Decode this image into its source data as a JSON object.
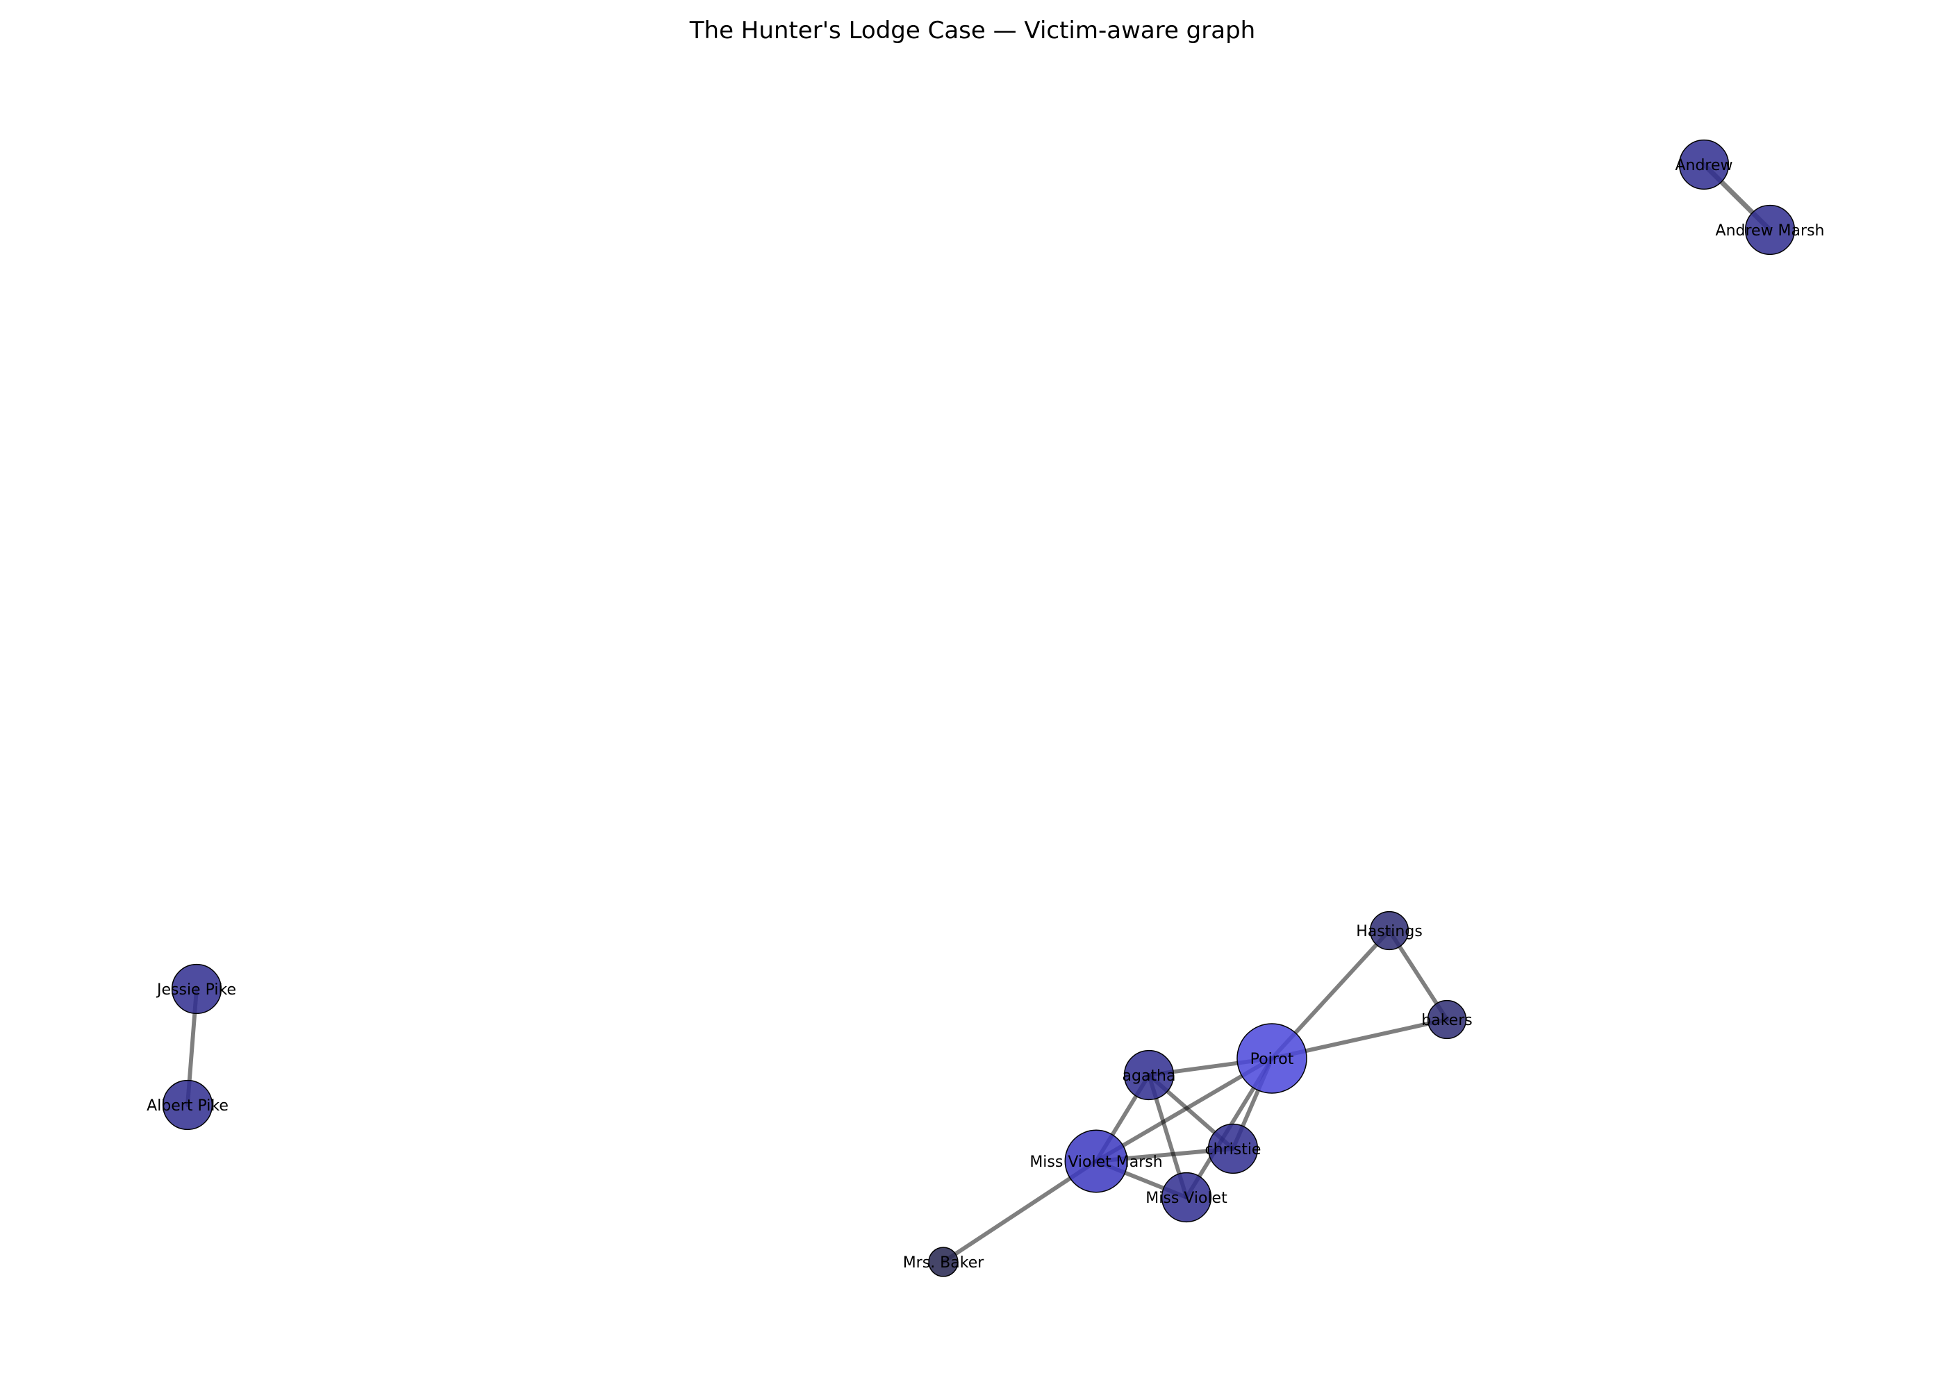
{
  "title": "The Hunter's Lodge Case — Victim-aware graph",
  "colors": {
    "edge": "#000000",
    "node_high": "#4a46da",
    "node_default": "#2f2d8f",
    "node_dark": "#25244f"
  },
  "nodes": [
    {
      "id": "Andrew",
      "label": "Andrew",
      "weight": 2,
      "color": "#2f2d8f"
    },
    {
      "id": "Andrew Marsh",
      "label": "Andrew Marsh",
      "weight": 2,
      "color": "#2f2d8f"
    },
    {
      "id": "Jessie Pike",
      "label": "Jessie Pike",
      "weight": 2,
      "color": "#2f2d8f"
    },
    {
      "id": "Albert Pike",
      "label": "Albert Pike",
      "weight": 2,
      "color": "#2f2d8f"
    },
    {
      "id": "Hastings",
      "label": "Hastings",
      "weight": 1.2,
      "color": "#2d2c73"
    },
    {
      "id": "bakers",
      "label": "bakers",
      "weight": 1.2,
      "color": "#2d2c73"
    },
    {
      "id": "Poirot",
      "label": "Poirot",
      "weight": 4,
      "color": "#4a46da"
    },
    {
      "id": "agatha",
      "label": "agatha",
      "weight": 2,
      "color": "#2f2d8f"
    },
    {
      "id": "christie",
      "label": "christie",
      "weight": 2,
      "color": "#2f2d8f"
    },
    {
      "id": "Miss Violet Marsh",
      "label": "Miss Violet Marsh",
      "weight": 3.2,
      "color": "#3b37c0"
    },
    {
      "id": "Miss Violet",
      "label": "Miss Violet",
      "weight": 2,
      "color": "#2f2d8f"
    },
    {
      "id": "Mrs. Baker",
      "label": "Mrs. Baker",
      "weight": 0.7,
      "color": "#25244f"
    }
  ],
  "edges": [
    {
      "source": "Andrew",
      "target": "Andrew Marsh",
      "weight": 3
    },
    {
      "source": "Jessie Pike",
      "target": "Albert Pike",
      "weight": 2
    },
    {
      "source": "Hastings",
      "target": "bakers",
      "weight": 2
    },
    {
      "source": "Hastings",
      "target": "Poirot",
      "weight": 2
    },
    {
      "source": "bakers",
      "target": "Poirot",
      "weight": 2
    },
    {
      "source": "agatha",
      "target": "Poirot",
      "weight": 2
    },
    {
      "source": "agatha",
      "target": "Miss Violet Marsh",
      "weight": 2
    },
    {
      "source": "agatha",
      "target": "christie",
      "weight": 2
    },
    {
      "source": "agatha",
      "target": "Miss Violet",
      "weight": 2
    },
    {
      "source": "Poirot",
      "target": "Miss Violet Marsh",
      "weight": 2
    },
    {
      "source": "Poirot",
      "target": "christie",
      "weight": 2
    },
    {
      "source": "Poirot",
      "target": "Miss Violet",
      "weight": 2
    },
    {
      "source": "Miss Violet Marsh",
      "target": "christie",
      "weight": 2
    },
    {
      "source": "Miss Violet Marsh",
      "target": "Miss Violet",
      "weight": 2
    },
    {
      "source": "Miss Violet Marsh",
      "target": "Mrs. Baker",
      "weight": 2
    }
  ]
}
